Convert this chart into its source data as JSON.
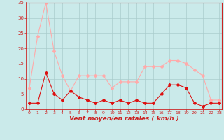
{
  "x": [
    0,
    1,
    2,
    3,
    4,
    5,
    6,
    7,
    8,
    9,
    10,
    11,
    12,
    13,
    14,
    15,
    16,
    17,
    18,
    19,
    20,
    21,
    22,
    23
  ],
  "wind_avg": [
    2,
    2,
    12,
    5,
    3,
    6,
    4,
    3,
    2,
    3,
    2,
    3,
    2,
    3,
    2,
    2,
    5,
    8,
    8,
    7,
    2,
    1,
    2,
    2
  ],
  "wind_gust": [
    7,
    24,
    35,
    19,
    11,
    6,
    11,
    11,
    11,
    11,
    7,
    9,
    9,
    9,
    14,
    14,
    14,
    16,
    16,
    15,
    13,
    11,
    3,
    3
  ],
  "xlabel": "Vent moyen/en rafales ( km/h )",
  "ylim": [
    0,
    35
  ],
  "yticks": [
    0,
    5,
    10,
    15,
    20,
    25,
    30,
    35
  ],
  "bg_color": "#caeaea",
  "line_avg_color": "#dd1111",
  "line_gust_color": "#ffaaaa",
  "marker_size": 2.0,
  "grid_color": "#aacccc"
}
